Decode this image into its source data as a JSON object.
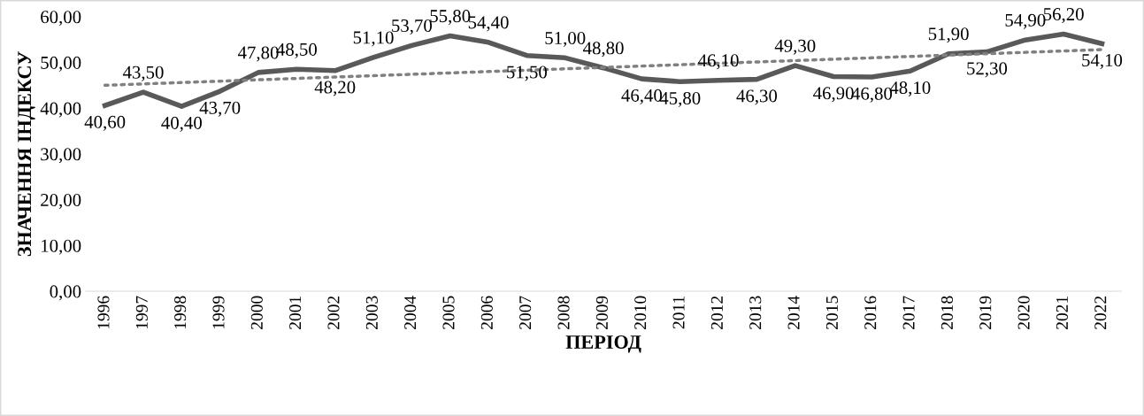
{
  "chart_data": {
    "type": "line",
    "xlabel": "ПЕРІОД",
    "ylabel": "ЗНАЧЕННЯ ІНДЕКСУ",
    "categories": [
      "1996",
      "1997",
      "1998",
      "1999",
      "2000",
      "2001",
      "2002",
      "2003",
      "2004",
      "2005",
      "2006",
      "2007",
      "2008",
      "2009",
      "2010",
      "2011",
      "2012",
      "2013",
      "2014",
      "2015",
      "2016",
      "2017",
      "2018",
      "2019",
      "2020",
      "2021",
      "2022"
    ],
    "series": [
      {
        "color": "#595959",
        "line_style": "solid",
        "values": [
          40.6,
          43.5,
          40.4,
          43.7,
          47.8,
          48.5,
          48.2,
          51.1,
          53.7,
          55.8,
          54.4,
          51.5,
          51.0,
          48.8,
          46.4,
          45.8,
          46.1,
          46.3,
          49.3,
          46.9,
          46.8,
          48.1,
          51.9,
          52.3,
          54.9,
          56.2,
          54.1
        ],
        "value_labels": [
          "40,60",
          "43,50",
          "40,40",
          "43,70",
          "47,80",
          "48,50",
          "48,20",
          "51,10",
          "53,70",
          "55,80",
          "54,40",
          "51,50",
          "51,00",
          "48,80",
          "46,40",
          "45,80",
          "46,10",
          "46,30",
          "49,30",
          "46,90",
          "46,80",
          "48,10",
          "51,90",
          "52,30",
          "54,90",
          "56,20",
          "54,10"
        ]
      },
      {
        "color": "#808080",
        "line_style": "dotted",
        "values": [
          45.0,
          45.3,
          45.6,
          45.9,
          46.2,
          46.5,
          46.8,
          47.1,
          47.4,
          47.7,
          48.0,
          48.3,
          48.6,
          48.9,
          49.2,
          49.5,
          49.8,
          50.1,
          50.4,
          50.7,
          51.0,
          51.3,
          51.6,
          51.9,
          52.2,
          52.5,
          52.8
        ]
      }
    ],
    "ylim": [
      0,
      60
    ],
    "yticks": [
      {
        "value": 0,
        "label": "0,00"
      },
      {
        "value": 10,
        "label": "10,00"
      },
      {
        "value": 20,
        "label": "20,00"
      },
      {
        "value": 30,
        "label": "30,00"
      },
      {
        "value": 40,
        "label": "40,00"
      },
      {
        "value": 50,
        "label": "50,00"
      },
      {
        "value": 60,
        "label": "60,00"
      }
    ],
    "grid": false,
    "legend": false,
    "marker": "none"
  }
}
